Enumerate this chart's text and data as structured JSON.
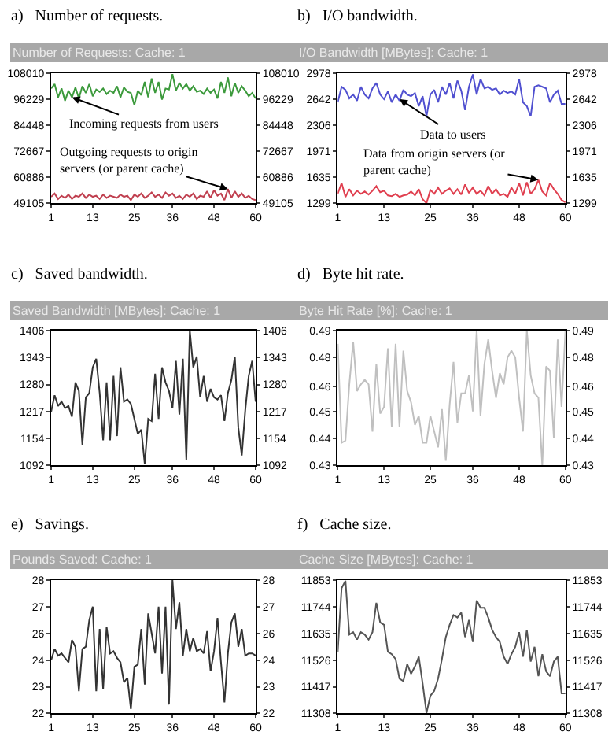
{
  "chart_data": [
    {
      "type": "line",
      "title": "a)   Number of requests.",
      "subtitle": "Number of Requests: Cache: 1",
      "x": [
        1,
        2,
        3,
        4,
        5,
        6,
        7,
        8,
        9,
        10,
        11,
        12,
        13,
        14,
        15,
        16,
        17,
        18,
        19,
        20,
        21,
        22,
        23,
        24,
        25,
        26,
        27,
        28,
        29,
        30,
        31,
        32,
        33,
        34,
        35,
        36,
        37,
        38,
        39,
        40,
        41,
        42,
        43,
        44,
        45,
        46,
        47,
        48,
        49,
        50,
        51,
        52,
        53,
        54,
        55,
        56,
        57,
        58,
        59,
        60
      ],
      "xlim": [
        1,
        60
      ],
      "xticks": [
        1,
        13,
        25,
        36,
        48,
        60
      ],
      "ylim": [
        49105,
        108010
      ],
      "yticks": [
        49105,
        60886,
        72667,
        84448,
        96229,
        108010
      ],
      "y2lim": [
        49105,
        108010
      ],
      "y2ticks": [
        49105,
        60886,
        72667,
        84448,
        96229,
        108010
      ],
      "series": [
        {
          "color": "#3c9a3c",
          "values": [
            101000,
            103000,
            97000,
            101000,
            95500,
            100000,
            97000,
            101500,
            96500,
            102000,
            99000,
            103000,
            97500,
            100500,
            99500,
            101000,
            98500,
            100000,
            99000,
            102000,
            97000,
            101500,
            99500,
            99000,
            93500,
            100000,
            98000,
            104000,
            97000,
            105500,
            99000,
            104000,
            96000,
            101000,
            100500,
            107500,
            100000,
            103500,
            101000,
            103000,
            100000,
            102000,
            99500,
            100000,
            98500,
            101000,
            99000,
            100500,
            96500,
            104000,
            99000,
            106000,
            97500,
            103500,
            99000,
            102000,
            100000,
            97500,
            99000,
            96500
          ]
        },
        {
          "color": "#c04050",
          "values": [
            52000,
            53500,
            51000,
            52500,
            51500,
            53000,
            51000,
            52500,
            52000,
            53500,
            51500,
            53000,
            52000,
            52500,
            51000,
            53000,
            51500,
            52500,
            52000,
            51500,
            53000,
            52000,
            52500,
            50500,
            53000,
            52000,
            53500,
            51500,
            52500,
            54000,
            52000,
            53000,
            51500,
            54000,
            52500,
            53500,
            51500,
            52500,
            51000,
            53000,
            52000,
            53500,
            51000,
            52500,
            52000,
            54500,
            51500,
            55000,
            52500,
            53500,
            50500,
            55500,
            51500,
            54500,
            52000,
            53500,
            51500,
            52500,
            51000,
            50500
          ]
        }
      ],
      "annotations": [
        {
          "text": "Incoming requests from users",
          "x": 7,
          "y": 97000
        },
        {
          "text": "Outgoing requests to origin\nservers (or parent cache)",
          "x": 52,
          "y": 55500
        }
      ]
    },
    {
      "type": "line",
      "title": "b)   I/O bandwidth.",
      "subtitle": "I/O Bandwidth [MBytes]: Cache: 1",
      "x": [
        1,
        2,
        3,
        4,
        5,
        6,
        7,
        8,
        9,
        10,
        11,
        12,
        13,
        14,
        15,
        16,
        17,
        18,
        19,
        20,
        21,
        22,
        23,
        24,
        25,
        26,
        27,
        28,
        29,
        30,
        31,
        32,
        33,
        34,
        35,
        36,
        37,
        38,
        39,
        40,
        41,
        42,
        43,
        44,
        45,
        46,
        47,
        48,
        49,
        50,
        51,
        52,
        53,
        54,
        55,
        56,
        57,
        58,
        59,
        60
      ],
      "xlim": [
        1,
        60
      ],
      "xticks": [
        1,
        13,
        25,
        36,
        48,
        60
      ],
      "ylim": [
        1299,
        2978
      ],
      "yticks": [
        1299,
        1635,
        1971,
        2306,
        2642,
        2978
      ],
      "y2lim": [
        1299,
        2978
      ],
      "y2ticks": [
        1299,
        1635,
        1971,
        2306,
        2642,
        2978
      ],
      "series": [
        {
          "color": "#5050d0",
          "values": [
            2600,
            2800,
            2760,
            2650,
            2700,
            2620,
            2800,
            2700,
            2650,
            2780,
            2850,
            2700,
            2640,
            2740,
            2600,
            2700,
            2620,
            2760,
            2700,
            2680,
            2720,
            2550,
            2680,
            2420,
            2700,
            2760,
            2600,
            2800,
            2700,
            2850,
            2650,
            2880,
            2750,
            2500,
            2800,
            2960,
            2700,
            2900,
            2780,
            2800,
            2760,
            2780,
            2700,
            2750,
            2720,
            2740,
            2700,
            2900,
            2600,
            2550,
            2420,
            2800,
            2820,
            2800,
            2780,
            2600,
            2700,
            2750,
            2580,
            2580
          ]
        },
        {
          "color": "#e04050",
          "values": [
            1420,
            1560,
            1380,
            1480,
            1400,
            1460,
            1420,
            1450,
            1410,
            1460,
            1520,
            1440,
            1460,
            1400,
            1390,
            1420,
            1380,
            1400,
            1410,
            1450,
            1400,
            1480,
            1350,
            1300,
            1470,
            1420,
            1500,
            1420,
            1460,
            1490,
            1420,
            1480,
            1410,
            1540,
            1430,
            1500,
            1420,
            1460,
            1400,
            1520,
            1420,
            1480,
            1400,
            1420,
            1380,
            1500,
            1420,
            1560,
            1400,
            1570,
            1420,
            1480,
            1600,
            1450,
            1400,
            1560,
            1480,
            1420,
            1340,
            1310
          ]
        }
      ],
      "annotations": [
        {
          "text": "Data to users",
          "x": 17,
          "y": 2640
        },
        {
          "text": "Data from origin servers (or\nparent cache)",
          "x": 53,
          "y": 1600
        }
      ]
    },
    {
      "type": "line",
      "title": "c)   Saved bandwidth.",
      "subtitle": "Saved Bandwidth [MBytes]: Cache: 1",
      "x": [
        1,
        2,
        3,
        4,
        5,
        6,
        7,
        8,
        9,
        10,
        11,
        12,
        13,
        14,
        15,
        16,
        17,
        18,
        19,
        20,
        21,
        22,
        23,
        24,
        25,
        26,
        27,
        28,
        29,
        30,
        31,
        32,
        33,
        34,
        35,
        36,
        37,
        38,
        39,
        40,
        41,
        42,
        43,
        44,
        45,
        46,
        47,
        48,
        49,
        50,
        51,
        52,
        53,
        54,
        55,
        56,
        57,
        58,
        59,
        60
      ],
      "xlim": [
        1,
        60
      ],
      "xticks": [
        1,
        13,
        25,
        36,
        48,
        60
      ],
      "ylim": [
        1092,
        1406
      ],
      "yticks": [
        1092,
        1154,
        1217,
        1280,
        1343,
        1406
      ],
      "y2lim": [
        1092,
        1406
      ],
      "y2ticks": [
        1092,
        1154,
        1217,
        1280,
        1343,
        1406
      ],
      "series": [
        {
          "color": "#333333",
          "values": [
            1217,
            1255,
            1230,
            1240,
            1225,
            1230,
            1205,
            1285,
            1265,
            1140,
            1250,
            1260,
            1320,
            1340,
            1260,
            1150,
            1285,
            1150,
            1300,
            1160,
            1320,
            1240,
            1245,
            1235,
            1200,
            1165,
            1175,
            1095,
            1200,
            1195,
            1305,
            1200,
            1320,
            1285,
            1265,
            1225,
            1335,
            1210,
            1340,
            1105,
            1406,
            1320,
            1345,
            1250,
            1300,
            1240,
            1270,
            1250,
            1245,
            1255,
            1195,
            1260,
            1290,
            1345,
            1180,
            1115,
            1220,
            1300,
            1335,
            1240
          ]
        }
      ]
    },
    {
      "type": "line",
      "title": "d)   Byte hit rate.",
      "subtitle": "Byte Hit Rate [%]: Cache: 1",
      "x": [
        1,
        2,
        3,
        4,
        5,
        6,
        7,
        8,
        9,
        10,
        11,
        12,
        13,
        14,
        15,
        16,
        17,
        18,
        19,
        20,
        21,
        22,
        23,
        24,
        25,
        26,
        27,
        28,
        29,
        30,
        31,
        32,
        33,
        34,
        35,
        36,
        37,
        38,
        39,
        40,
        41,
        42,
        43,
        44,
        45,
        46,
        47,
        48,
        49,
        50,
        51,
        52,
        53,
        54,
        55,
        56,
        57,
        58,
        59,
        60
      ],
      "xlim": [
        1,
        60
      ],
      "xticks": [
        1,
        13,
        25,
        36,
        48,
        60
      ],
      "ylim": [
        0.43,
        0.49
      ],
      "yticks": [
        0.43,
        {
          "value": 0.442,
          "label": "0.44"
        },
        {
          "value": 0.454,
          "label": "0.45"
        },
        {
          "value": 0.465,
          "label": "0.46"
        },
        {
          "value": 0.478,
          "label": "0.48"
        },
        0.49
      ],
      "y2lim": [
        0.43,
        0.49
      ],
      "y2ticks": [
        0.43,
        {
          "value": 0.442,
          "label": "0.44"
        },
        {
          "value": 0.454,
          "label": "0.45"
        },
        {
          "value": 0.465,
          "label": "0.46"
        },
        {
          "value": 0.478,
          "label": "0.48"
        },
        0.49
      ],
      "series": [
        {
          "color": "#c0c0c0",
          "values": [
            0.484,
            0.44,
            0.441,
            0.466,
            0.485,
            0.463,
            0.466,
            0.468,
            0.466,
            0.445,
            0.475,
            0.453,
            0.456,
            0.482,
            0.447,
            0.484,
            0.447,
            0.481,
            0.463,
            0.458,
            0.448,
            0.452,
            0.44,
            0.44,
            0.452,
            0.445,
            0.438,
            0.455,
            0.432,
            0.457,
            0.476,
            0.449,
            0.462,
            0.462,
            0.47,
            0.454,
            0.49,
            0.452,
            0.475,
            0.486,
            0.472,
            0.46,
            0.471,
            0.466,
            0.478,
            0.481,
            0.478,
            0.46,
            0.445,
            0.49,
            0.47,
            0.462,
            0.46,
            0.43,
            0.474,
            0.472,
            0.442,
            0.486,
            0.456,
            0.49
          ]
        }
      ]
    },
    {
      "type": "line",
      "title": "e)   Savings.",
      "subtitle": "Pounds Saved: Cache: 1",
      "x": [
        1,
        2,
        3,
        4,
        5,
        6,
        7,
        8,
        9,
        10,
        11,
        12,
        13,
        14,
        15,
        16,
        17,
        18,
        19,
        20,
        21,
        22,
        23,
        24,
        25,
        26,
        27,
        28,
        29,
        30,
        31,
        32,
        33,
        34,
        35,
        36,
        37,
        38,
        39,
        40,
        41,
        42,
        43,
        44,
        45,
        46,
        47,
        48,
        49,
        50,
        51,
        52,
        53,
        54,
        55,
        56,
        57,
        58,
        59,
        60
      ],
      "xlim": [
        1,
        60
      ],
      "xticks": [
        1,
        13,
        25,
        36,
        48,
        60
      ],
      "ylim": [
        22,
        28
      ],
      "yticks": [
        22,
        {
          "value": 23.2,
          "label": "23"
        },
        {
          "value": 24.4,
          "label": "24"
        },
        {
          "value": 25.6,
          "label": "26"
        },
        {
          "value": 26.8,
          "label": "27"
        },
        28
      ],
      "y2lim": [
        22,
        28
      ],
      "y2ticks": [
        22,
        {
          "value": 23.2,
          "label": "23"
        },
        {
          "value": 24.4,
          "label": "24"
        },
        {
          "value": 25.6,
          "label": "26"
        },
        {
          "value": 26.8,
          "label": "27"
        },
        28
      ],
      "series": [
        {
          "color": "#333333",
          "values": [
            24.4,
            24.9,
            24.6,
            24.7,
            24.5,
            24.3,
            25.3,
            25.0,
            23.0,
            24.9,
            25.0,
            26.2,
            26.8,
            23.0,
            25.8,
            23.1,
            25.9,
            24.7,
            24.8,
            24.5,
            24.3,
            23.4,
            23.6,
            22.2,
            24.1,
            24.2,
            25.8,
            23.3,
            26.5,
            25.6,
            24.7,
            26.8,
            23.8,
            26.8,
            22.4,
            28.0,
            25.8,
            27.0,
            24.6,
            25.8,
            24.8,
            25.4,
            24.8,
            24.9,
            24.7,
            25.7,
            23.9,
            24.8,
            26.3,
            24.3,
            22.5,
            24.7,
            26.1,
            26.5,
            25.0,
            25.8,
            24.6,
            24.7,
            24.7,
            24.6
          ]
        }
      ]
    },
    {
      "type": "line",
      "title": "f)   Cache size.",
      "subtitle": "Cache Size [MBytes]: Cache: 1",
      "x": [
        1,
        2,
        3,
        4,
        5,
        6,
        7,
        8,
        9,
        10,
        11,
        12,
        13,
        14,
        15,
        16,
        17,
        18,
        19,
        20,
        21,
        22,
        23,
        24,
        25,
        26,
        27,
        28,
        29,
        30,
        31,
        32,
        33,
        34,
        35,
        36,
        37,
        38,
        39,
        40,
        41,
        42,
        43,
        44,
        45,
        46,
        47,
        48,
        49,
        50,
        51,
        52,
        53,
        54,
        55,
        56,
        57,
        58,
        59,
        60
      ],
      "xlim": [
        1,
        60
      ],
      "xticks": [
        1,
        13,
        25,
        36,
        48,
        60
      ],
      "ylim": [
        11308,
        11853
      ],
      "yticks": [
        11308,
        11417,
        11526,
        11635,
        11744,
        11853
      ],
      "y2lim": [
        11308,
        11853
      ],
      "y2ticks": [
        11308,
        11417,
        11526,
        11635,
        11744,
        11853
      ],
      "series": [
        {
          "color": "#555555",
          "values": [
            11560,
            11820,
            11850,
            11630,
            11640,
            11610,
            11640,
            11630,
            11610,
            11640,
            11760,
            11680,
            11670,
            11560,
            11550,
            11530,
            11450,
            11440,
            11510,
            11470,
            11500,
            11540,
            11430,
            11310,
            11380,
            11400,
            11450,
            11530,
            11620,
            11670,
            11710,
            11700,
            11720,
            11620,
            11690,
            11600,
            11770,
            11740,
            11740,
            11700,
            11650,
            11620,
            11600,
            11540,
            11510,
            11550,
            11580,
            11640,
            11540,
            11650,
            11520,
            11580,
            11460,
            11550,
            11480,
            11460,
            11520,
            11540,
            11390,
            11390
          ]
        }
      ]
    }
  ]
}
